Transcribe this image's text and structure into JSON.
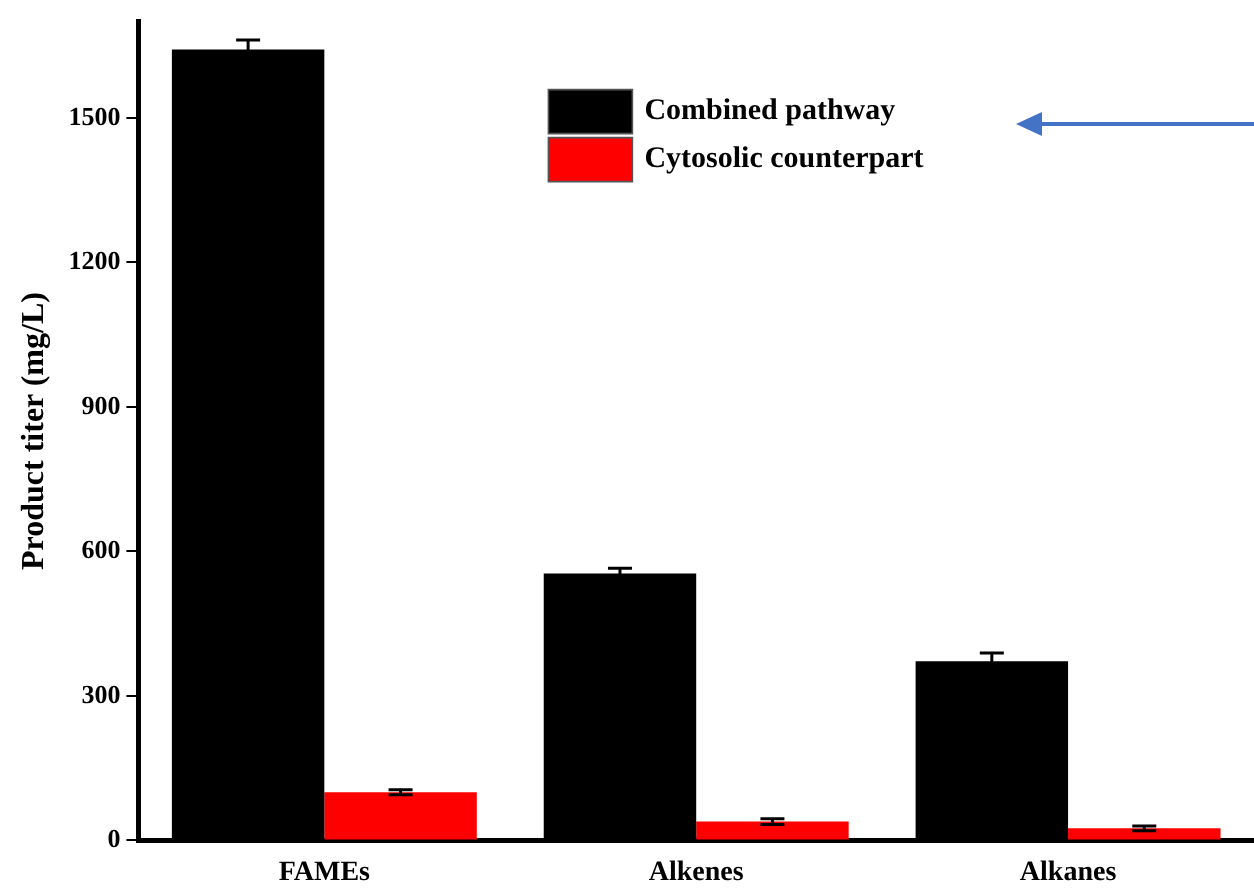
{
  "chart_data": {
    "type": "bar",
    "ylabel": "Product titer (mg/L)",
    "categories": [
      "FAMEs",
      "Alkenes",
      "Alkanes"
    ],
    "series": [
      {
        "name": "Combined pathway",
        "color": "#000000",
        "values": [
          1642,
          554,
          372
        ],
        "errors": [
          20,
          11,
          17
        ]
      },
      {
        "name": "Cytosolic counterpart",
        "color": "#ff0000",
        "values": [
          100,
          39,
          25
        ],
        "errors": [
          5,
          6,
          5
        ]
      }
    ],
    "ylim": [
      0,
      1700
    ],
    "yticks": [
      0,
      300,
      600,
      900,
      1200,
      1500
    ],
    "grid": false,
    "legend": "top right"
  }
}
